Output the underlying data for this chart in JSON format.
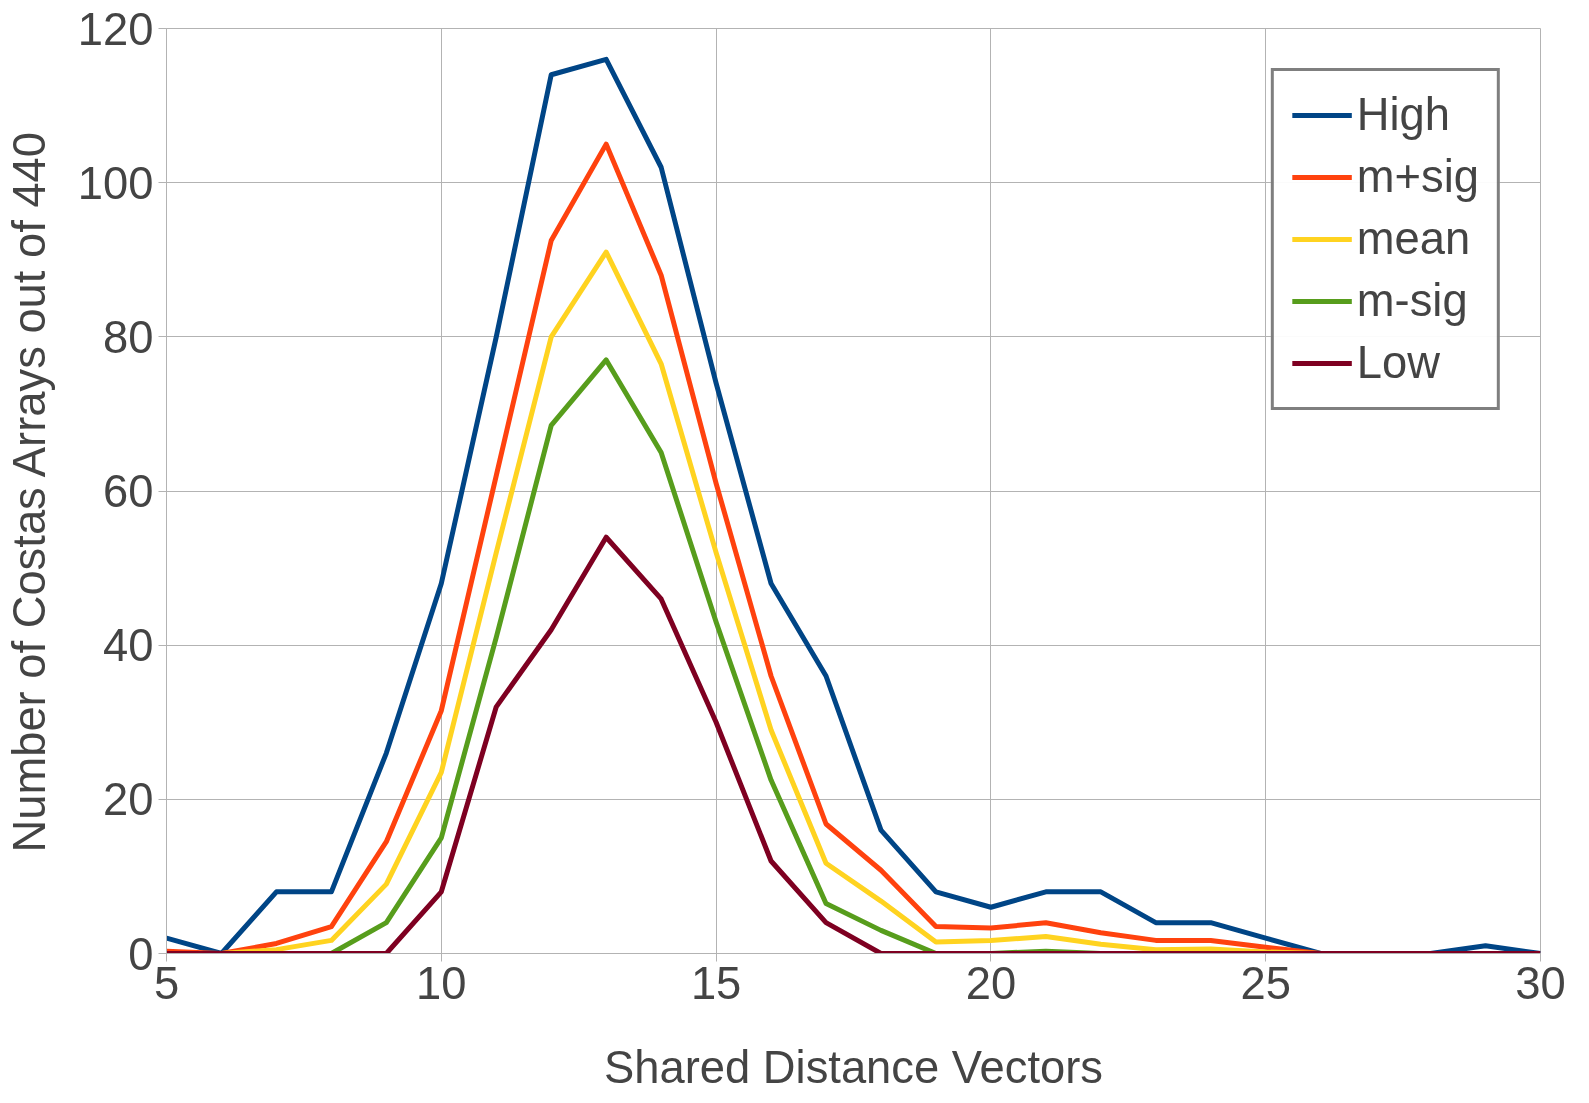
{
  "chart_data": {
    "type": "line",
    "xlabel": "Shared Distance Vectors",
    "ylabel": "Number of Costas Arrays out of 440",
    "x": [
      5,
      6,
      7,
      8,
      9,
      10,
      11,
      12,
      13,
      14,
      15,
      16,
      17,
      18,
      19,
      20,
      21,
      22,
      23,
      24,
      25,
      26,
      27,
      28,
      29,
      30
    ],
    "series": [
      {
        "name": "High",
        "color": "#004586",
        "values": [
          2,
          0,
          8,
          8,
          26,
          48,
          80,
          114,
          116,
          102,
          74,
          48,
          36,
          16,
          8,
          6,
          8,
          8,
          4,
          4,
          2,
          0,
          0,
          0,
          1,
          0
        ]
      },
      {
        "name": "m+sig",
        "color": "#ff420e",
        "values": [
          0.3,
          0,
          1.3,
          3.5,
          14.5,
          31.5,
          62,
          92.5,
          105,
          88,
          61,
          36,
          16.8,
          10.8,
          3.5,
          3.3,
          4,
          2.7,
          1.7,
          1.7,
          0.8,
          0,
          null,
          null,
          null,
          null
        ]
      },
      {
        "name": "mean",
        "color": "#ffd320",
        "values": [
          0,
          0,
          0.5,
          1.7,
          9,
          23.5,
          52,
          80,
          91,
          76.5,
          52,
          29,
          11.7,
          6.8,
          1.5,
          1.7,
          2.2,
          1.2,
          0.5,
          0.6,
          0.2,
          0,
          null,
          null,
          null,
          null
        ]
      },
      {
        "name": "m-sig",
        "color": "#579d1c",
        "values": [
          null,
          null,
          null,
          0,
          4,
          15,
          41,
          68.5,
          77,
          65,
          43,
          22.5,
          6.5,
          3,
          0,
          0,
          0.3,
          0,
          null,
          null,
          null,
          null,
          null,
          null,
          null,
          null
        ]
      },
      {
        "name": "Low",
        "color": "#7e0021",
        "values": [
          0,
          0,
          0,
          0,
          0,
          8,
          32,
          42,
          54,
          46,
          30,
          12,
          4,
          0,
          0,
          0,
          0,
          0,
          0,
          0,
          0,
          0,
          0,
          0,
          0,
          0
        ]
      }
    ],
    "xlim": [
      5,
      30
    ],
    "ylim": [
      0,
      120
    ],
    "xticks": [
      5,
      10,
      15,
      20,
      25,
      30
    ],
    "yticks": [
      0,
      20,
      40,
      60,
      80,
      100,
      120
    ],
    "grid": true,
    "legend": "top right",
    "marker": "none",
    "line_style": "solid"
  }
}
